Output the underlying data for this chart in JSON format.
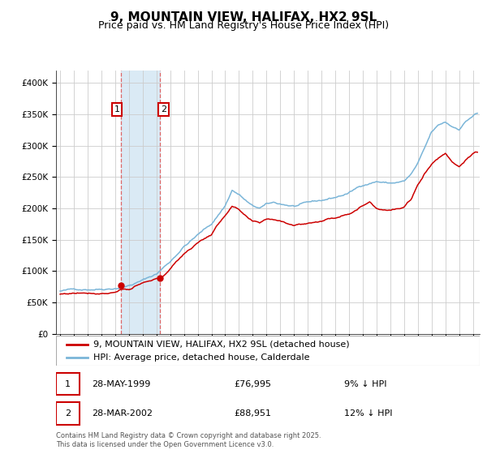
{
  "title": "9, MOUNTAIN VIEW, HALIFAX, HX2 9SL",
  "subtitle": "Price paid vs. HM Land Registry's House Price Index (HPI)",
  "legend_line1": "9, MOUNTAIN VIEW, HALIFAX, HX2 9SL (detached house)",
  "legend_line2": "HPI: Average price, detached house, Calderdale",
  "footnote": "Contains HM Land Registry data © Crown copyright and database right 2025.\nThis data is licensed under the Open Government Licence v3.0.",
  "sale1_label": "28-MAY-1999",
  "sale1_price": "£76,995",
  "sale1_hpi": "9% ↓ HPI",
  "sale1_date_num": 1999.41,
  "sale1_value": 76995,
  "sale2_label": "28-MAR-2002",
  "sale2_price": "£88,951",
  "sale2_hpi": "12% ↓ HPI",
  "sale2_date_num": 2002.24,
  "sale2_value": 88951,
  "hpi_color": "#7ab5d8",
  "property_color": "#cc0000",
  "shade_color": "#daeaf5",
  "grid_color": "#cccccc",
  "vline_color": "#dd6666",
  "ylim": [
    0,
    420000
  ],
  "yticks": [
    0,
    50000,
    100000,
    150000,
    200000,
    250000,
    300000,
    350000,
    400000
  ],
  "xlim_left": 1994.7,
  "xlim_right": 2025.5,
  "background_color": "#ffffff",
  "title_fontsize": 11,
  "subtitle_fontsize": 9,
  "tick_fontsize": 7.5,
  "legend_fontsize": 8,
  "table_fontsize": 8,
  "footnote_fontsize": 6
}
